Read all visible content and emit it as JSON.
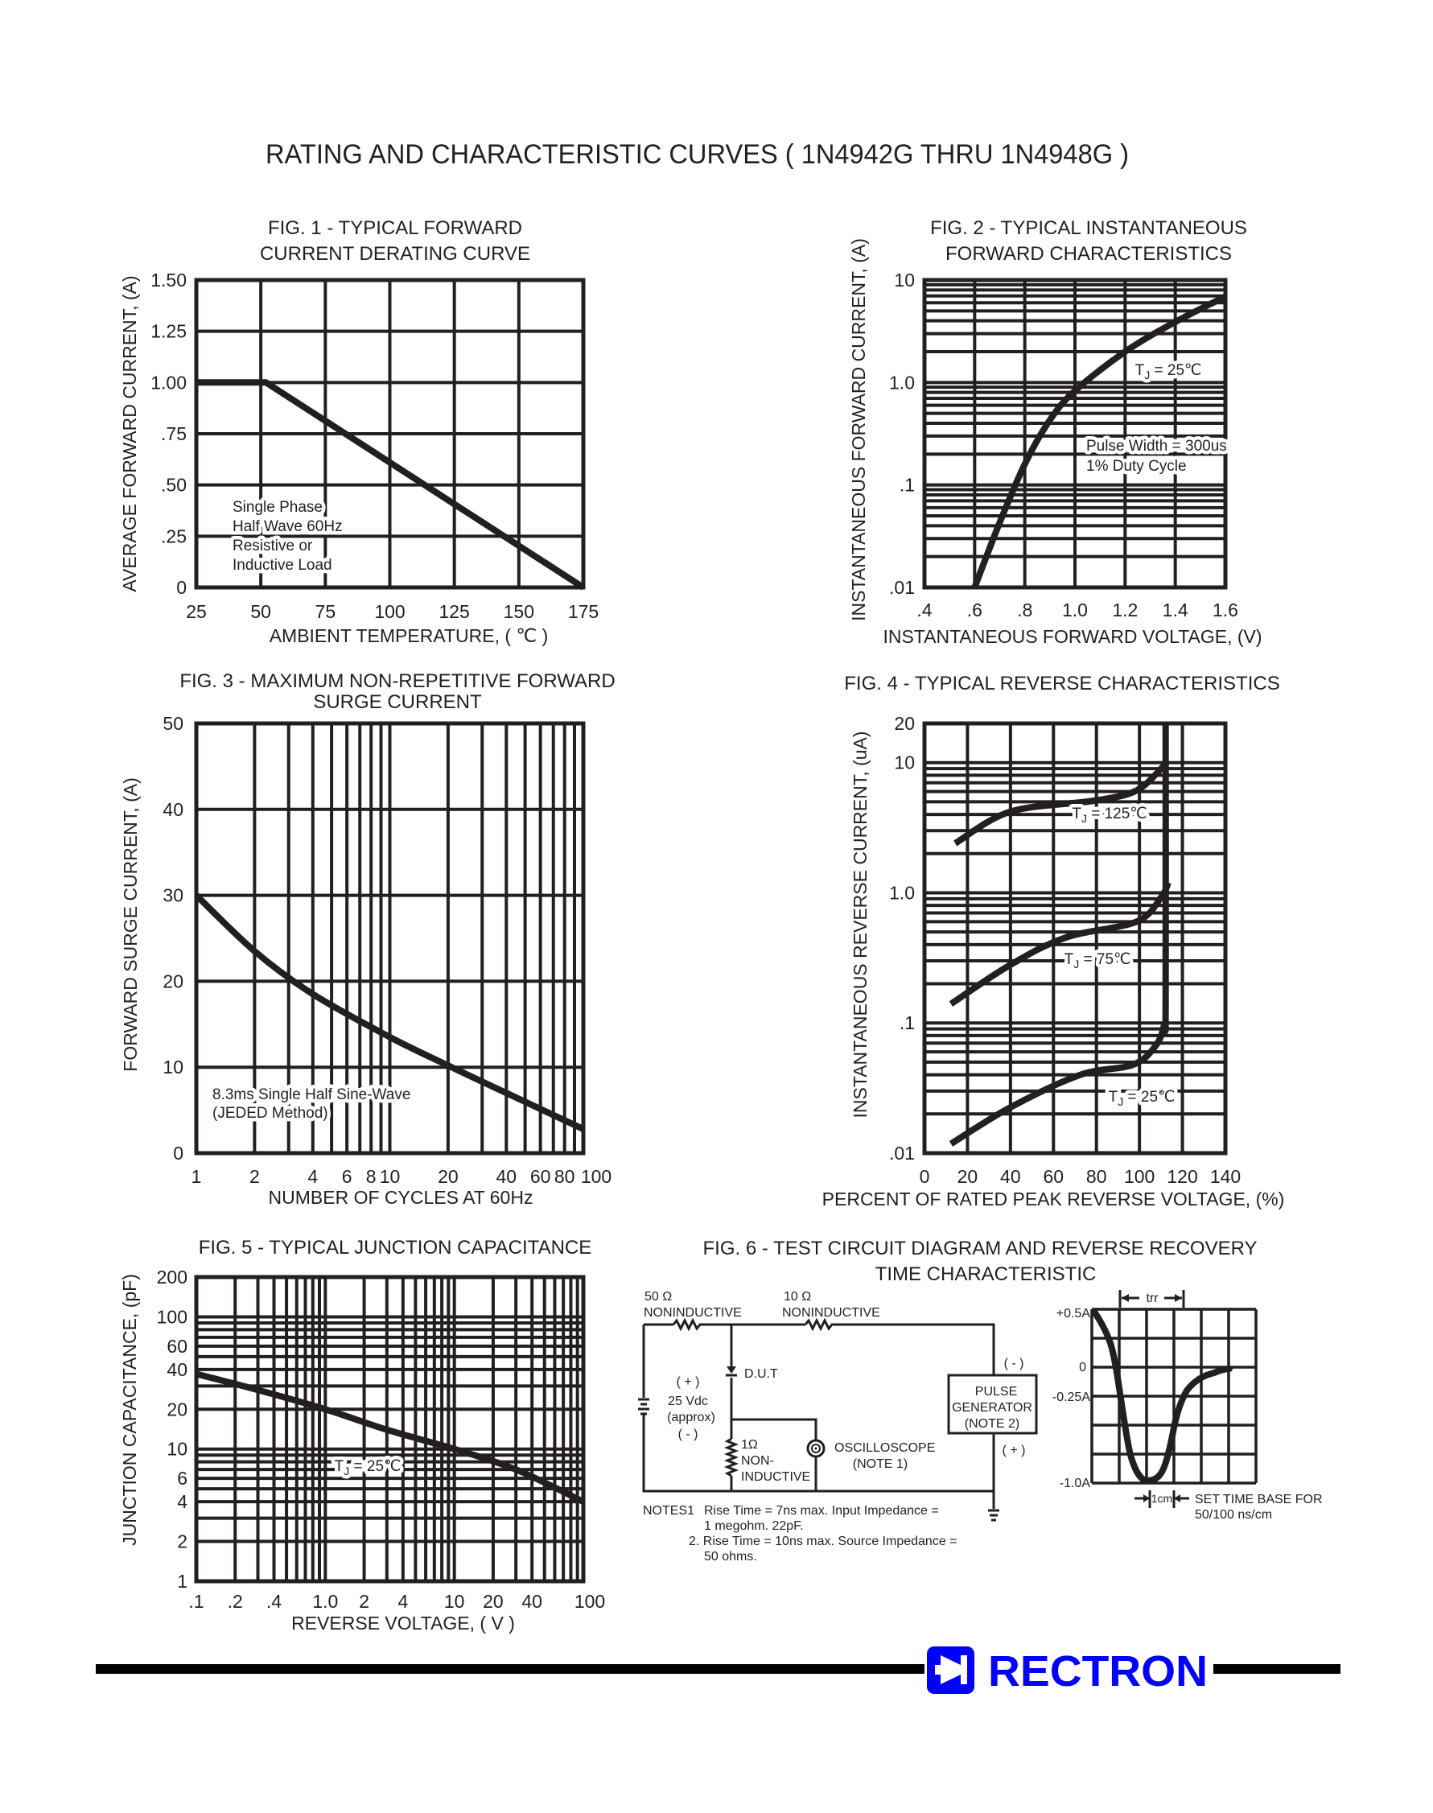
{
  "page": {
    "title": "RATING AND CHARACTERISTIC CURVES ( 1N4942G THRU 1N4948G )"
  },
  "chart_data": [
    {
      "id": "fig1",
      "type": "line",
      "title_lines": [
        "FIG. 1 - TYPICAL FORWARD",
        "CURRENT DERATING CURVE"
      ],
      "xlabel": "AMBIENT TEMPERATURE, ( ℃ )",
      "ylabel": "AVERAGE FORWARD  CURRENT, (A)",
      "xscale": "linear",
      "yscale": "linear",
      "xlim": [
        25,
        175
      ],
      "ylim": [
        0,
        1.5
      ],
      "x_ticks": [
        25,
        50,
        75,
        100,
        125,
        150,
        175
      ],
      "x_tick_labels": [
        "25",
        "50",
        "75",
        "100",
        "125",
        "150",
        "175"
      ],
      "y_ticks": [
        0,
        0.25,
        0.5,
        0.75,
        1.0,
        1.25,
        1.5
      ],
      "y_tick_labels": [
        "0",
        ".25",
        ".50",
        ".75",
        "1.00",
        "1.25",
        "1.50"
      ],
      "grid": true,
      "annotations": [
        "Single Phase",
        "Half Wave 60Hz",
        "Resistive or",
        "Inductive Load"
      ],
      "series": [
        {
          "points": [
            [
              25,
              1.0
            ],
            [
              52,
              1.0
            ],
            [
              175,
              0
            ]
          ]
        }
      ]
    },
    {
      "id": "fig2",
      "type": "line",
      "title_lines": [
        "FIG. 2 - TYPICAL INSTANTANEOUS",
        "FORWARD CHARACTERISTICS"
      ],
      "xlabel": "INSTANTANEOUS FORWARD VOLTAGE, (V)",
      "ylabel": "INSTANTANEOUS FORWARD CURRENT, (A)",
      "xscale": "linear",
      "yscale": "log",
      "xlim": [
        0.4,
        1.6
      ],
      "ylim": [
        0.01,
        10
      ],
      "x_ticks": [
        0.4,
        0.6,
        0.8,
        1.0,
        1.2,
        1.4,
        1.6
      ],
      "x_tick_labels": [
        ".4",
        ".6",
        ".8",
        "1.0",
        "1.2",
        "1.4",
        "1.6"
      ],
      "y_ticks": [
        0.01,
        0.1,
        1,
        10
      ],
      "y_tick_labels": [
        ".01",
        ".1",
        "1.0",
        "10"
      ],
      "grid": true,
      "annotations": [
        "Pulse Width = 300us",
        "1% Duty Cycle"
      ],
      "series": [
        {
          "label": {
            "main": "T",
            "sub": "J",
            "rest": " = 25℃"
          },
          "points": [
            [
              0.6,
              0.01
            ],
            [
              0.7,
              0.043
            ],
            [
              0.8,
              0.16
            ],
            [
              0.9,
              0.43
            ],
            [
              1.0,
              0.83
            ],
            [
              1.2,
              2.0
            ],
            [
              1.4,
              3.9
            ],
            [
              1.6,
              6.9
            ]
          ]
        }
      ]
    },
    {
      "id": "fig3",
      "type": "line",
      "title_lines": [
        "FIG. 3 - MAXIMUM NON-REPETITIVE FORWARD",
        "SURGE CURRENT"
      ],
      "xlabel": "NUMBER OF CYCLES AT 60Hz",
      "ylabel": "FORWARD SURGE CURRENT, (A)",
      "xscale": "log",
      "yscale": "linear",
      "xlim": [
        1,
        100
      ],
      "ylim": [
        0,
        50
      ],
      "x_ticks": [
        1,
        2,
        4,
        6,
        8,
        10,
        20,
        40,
        60,
        80,
        100
      ],
      "x_tick_labels": [
        "1",
        "2",
        "4",
        "6",
        "8",
        "10",
        "20",
        "40",
        "60",
        "80",
        "100"
      ],
      "y_ticks": [
        0,
        10,
        20,
        30,
        40,
        50
      ],
      "y_tick_labels": [
        "0",
        "10",
        "20",
        "30",
        "40",
        "50"
      ],
      "grid": true,
      "annotations": [
        "8.3ms Single Half Sine-Wave",
        "(JEDED Method)"
      ],
      "series": [
        {
          "points": [
            [
              1,
              30
            ],
            [
              2,
              23.5
            ],
            [
              4,
              18.5
            ],
            [
              10,
              13.5
            ],
            [
              20,
              10.2
            ],
            [
              40,
              7
            ],
            [
              100,
              2.8
            ]
          ]
        }
      ]
    },
    {
      "id": "fig4",
      "type": "line",
      "title_lines": [
        "FIG. 4 - TYPICAL REVERSE CHARACTERISTICS"
      ],
      "xlabel": "PERCENT OF RATED PEAK REVERSE VOLTAGE, (%)",
      "ylabel": "INSTANTANEOUS REVERSE CURRENT, (uA)",
      "xscale": "linear",
      "yscale": "log",
      "xlim": [
        0,
        140
      ],
      "ylim": [
        0.01,
        20
      ],
      "x_ticks": [
        0,
        20,
        40,
        60,
        80,
        100,
        120,
        140
      ],
      "x_tick_labels": [
        "0",
        "20",
        "40",
        "60",
        "80",
        "100",
        "120",
        "140"
      ],
      "y_ticks": [
        0.01,
        0.1,
        1,
        10,
        20
      ],
      "y_tick_labels": [
        ".01",
        ".1",
        "1.0",
        "10",
        "20"
      ],
      "grid": true,
      "annotations": [],
      "series": [
        {
          "label": {
            "main": "T",
            "sub": "J",
            "rest": " = 125℃"
          },
          "points": [
            [
              14.3,
              2.4
            ],
            [
              40,
              4.2
            ],
            [
              79,
              5.1
            ],
            [
              98.6,
              6.1
            ],
            [
              111.5,
              9.5
            ]
          ]
        },
        {
          "label": {
            "main": "T",
            "sub": "J",
            "rest": " = 75℃"
          },
          "points": [
            [
              12.3,
              0.14
            ],
            [
              40,
              0.28
            ],
            [
              66,
              0.455
            ],
            [
              98.6,
              0.6
            ],
            [
              110,
              0.92
            ],
            [
              113.5,
              1.2
            ]
          ]
        },
        {
          "label": {
            "main": "T",
            "sub": "J",
            "rest": " = 25℃"
          },
          "points": [
            [
              12.3,
              0.0118
            ],
            [
              40,
              0.0225
            ],
            [
              72.6,
              0.04
            ],
            [
              97,
              0.0477
            ],
            [
              107.6,
              0.067
            ],
            [
              111.5,
              0.097
            ],
            [
              112.2,
              0.14
            ],
            [
              112.2,
              20
            ]
          ]
        }
      ]
    },
    {
      "id": "fig5",
      "type": "line",
      "title_lines": [
        "FIG. 5 - TYPICAL JUNCTION CAPACITANCE"
      ],
      "xlabel": "REVERSE VOLTAGE, ( V )",
      "ylabel": "JUNCTION CAPACITANCE, (pF)",
      "xscale": "log",
      "yscale": "log",
      "xlim": [
        0.1,
        100
      ],
      "ylim": [
        1,
        200
      ],
      "x_ticks": [
        0.1,
        0.2,
        0.4,
        1,
        2,
        4,
        10,
        20,
        40,
        100
      ],
      "x_tick_labels": [
        ".1",
        ".2",
        ".4",
        "1.0",
        "2",
        "4",
        "10",
        "20",
        "40",
        "100"
      ],
      "y_ticks": [
        1,
        2,
        4,
        6,
        10,
        20,
        40,
        60,
        100,
        200
      ],
      "y_tick_labels": [
        "1",
        "2",
        "4",
        "6",
        "10",
        "20",
        "40",
        "60",
        "100",
        "200"
      ],
      "grid": true,
      "annotations": [],
      "series": [
        {
          "label": {
            "main": "T",
            "sub": "J",
            "rest": " = 25℃"
          },
          "points": [
            [
              0.1,
              37
            ],
            [
              0.3,
              28
            ],
            [
              1,
              20
            ],
            [
              3,
              14
            ],
            [
              10,
              10
            ],
            [
              30,
              7
            ],
            [
              100,
              4
            ]
          ]
        }
      ]
    }
  ],
  "fig6": {
    "title_lines": [
      "FIG. 6 - TEST CIRCUIT DIAGRAM  AND REVERSE RECOVERY",
      "TIME CHARACTERISTIC"
    ],
    "r50": {
      "value": "50 Ω",
      "type": "NONINDUCTIVE"
    },
    "r10": {
      "value": "10 Ω",
      "type": "NONINDUCTIVE"
    },
    "dut": "D.U.T",
    "supply": [
      "( + )",
      "25 Vdc",
      "(approx)",
      "( - )"
    ],
    "r1": [
      "1Ω",
      "NON-",
      "INDUCTIVE"
    ],
    "scope": [
      "OSCILLOSCOPE",
      "(NOTE 1)"
    ],
    "pulse_gen": [
      "PULSE",
      "GENERATOR",
      "(NOTE 2)"
    ],
    "pg_minus": "( - )",
    "pg_plus": "( + )",
    "notes": {
      "head": "NOTES1",
      "lines": [
        "Rise Time = 7ns max. Input Impedance =",
        "1 megohm. 22pF.",
        "2. Rise Time = 10ns max. Source Impedance =",
        "50 ohms."
      ]
    },
    "waveform": {
      "levels": [
        "+0.5A",
        "0",
        "-0.25A",
        "-1.0A"
      ],
      "trr": "trr",
      "cm": "1cm",
      "timebase": [
        "SET TIME BASE FOR",
        "50/100 ns/cm"
      ]
    }
  },
  "brand": {
    "name": "RECTRON",
    "color": "#0000ff",
    "icon": "diode-logo-icon"
  }
}
